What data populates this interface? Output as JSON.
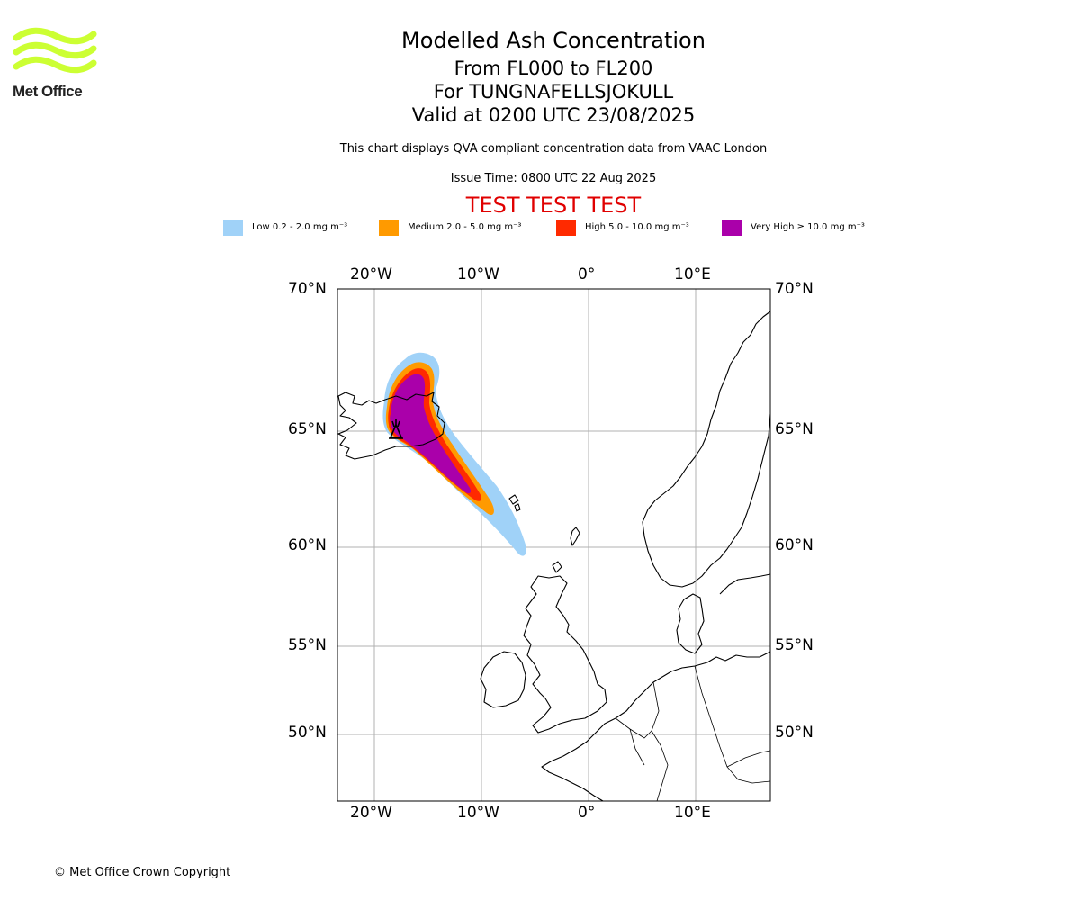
{
  "header": {
    "title": "Modelled Ash Concentration",
    "flight_levels": "From FL000 to FL200",
    "volcano": "For TUNGNAFELLSJOKULL",
    "valid_time": "Valid at 0200 UTC 23/08/2025",
    "description": "This chart displays QVA compliant concentration data from VAAC London",
    "issue_time": "Issue Time: 0800 UTC 22 Aug 2025",
    "test_banner": "TEST TEST TEST"
  },
  "logo": {
    "text": "Met Office",
    "color": "#ccff33"
  },
  "legend": [
    {
      "label": "Low 0.2 - 2.0 mg m⁻³",
      "color": "#a0d2f8"
    },
    {
      "label": "Medium 2.0 - 5.0 mg m⁻³",
      "color": "#ff9a00"
    },
    {
      "label": "High 5.0 - 10.0 mg m⁻³",
      "color": "#ff2a00"
    },
    {
      "label": "Very High ≥ 10.0 mg m⁻³",
      "color": "#aa00aa"
    }
  ],
  "map": {
    "lon_range": [
      -23.5,
      17
    ],
    "lat_range": [
      47,
      70
    ],
    "lon_ticks": [
      "20°W",
      "10°W",
      "0°",
      "10°E"
    ],
    "lat_ticks": [
      "70°N",
      "65°N",
      "60°N",
      "55°N",
      "50°N"
    ],
    "grid": true,
    "volcano_marker": "volcano-icon"
  },
  "footer": {
    "copyright": "© Met Office Crown Copyright"
  }
}
